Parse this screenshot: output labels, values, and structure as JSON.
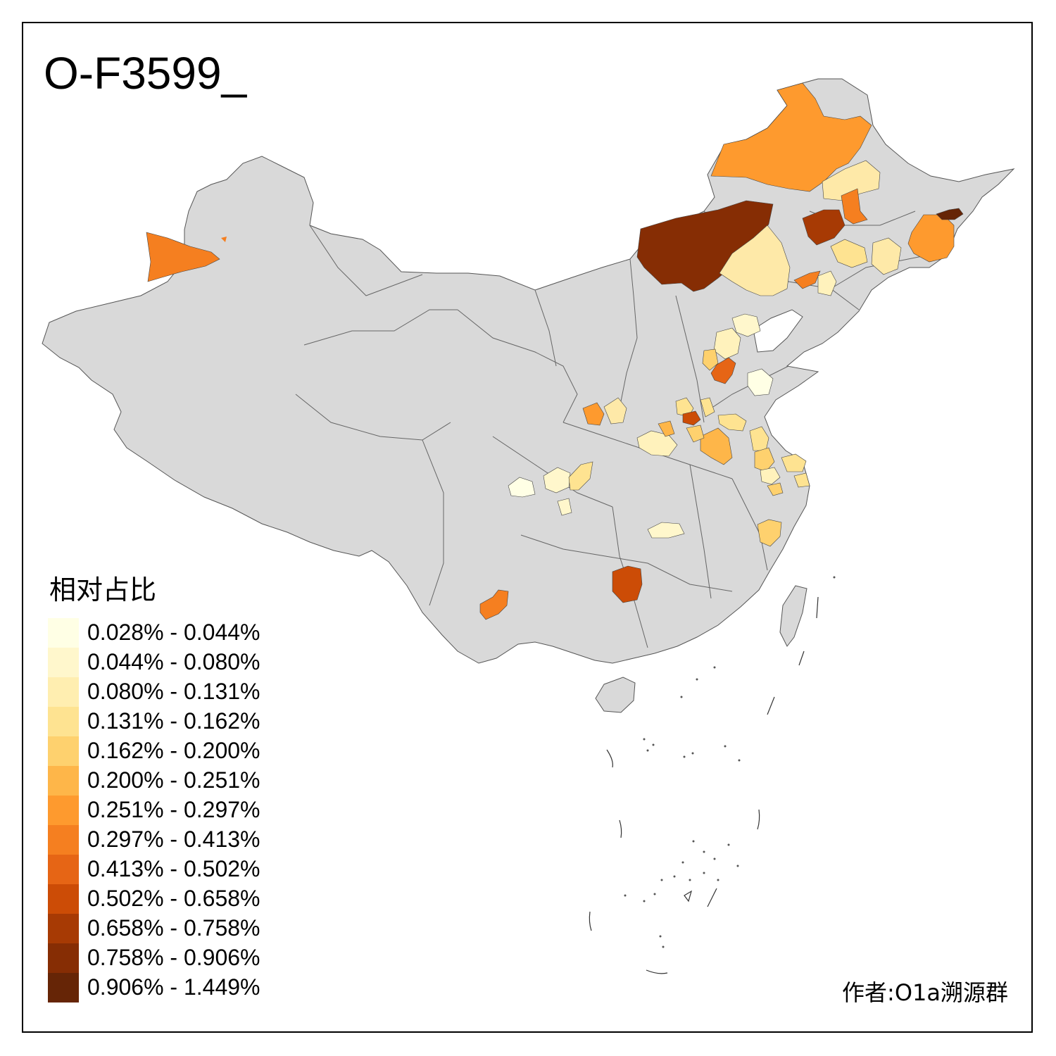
{
  "map": {
    "title": "O-F3599_",
    "base_color": "#d9d9d9",
    "legend": {
      "title": "相对占比",
      "classes": [
        {
          "label": "0.028% - 0.044%",
          "color": "#ffffe5"
        },
        {
          "label": "0.044% - 0.080%",
          "color": "#fff7cc"
        },
        {
          "label": "0.080% - 0.131%",
          "color": "#ffeeb0"
        },
        {
          "label": "0.131% - 0.162%",
          "color": "#fee391"
        },
        {
          "label": "0.162% - 0.200%",
          "color": "#fed16e"
        },
        {
          "label": "0.200% - 0.251%",
          "color": "#feb649"
        },
        {
          "label": "0.251% - 0.297%",
          "color": "#fe9a2e"
        },
        {
          "label": "0.297% - 0.413%",
          "color": "#f57f20"
        },
        {
          "label": "0.413% - 0.502%",
          "color": "#e66515"
        },
        {
          "label": "0.502% - 0.658%",
          "color": "#cc4c06"
        },
        {
          "label": "0.658% - 0.758%",
          "color": "#a73a04"
        },
        {
          "label": "0.758% - 0.906%",
          "color": "#862d04"
        },
        {
          "label": "0.906% - 1.449%",
          "color": "#662506"
        }
      ]
    },
    "credit": "作者:O1a溯源群"
  }
}
